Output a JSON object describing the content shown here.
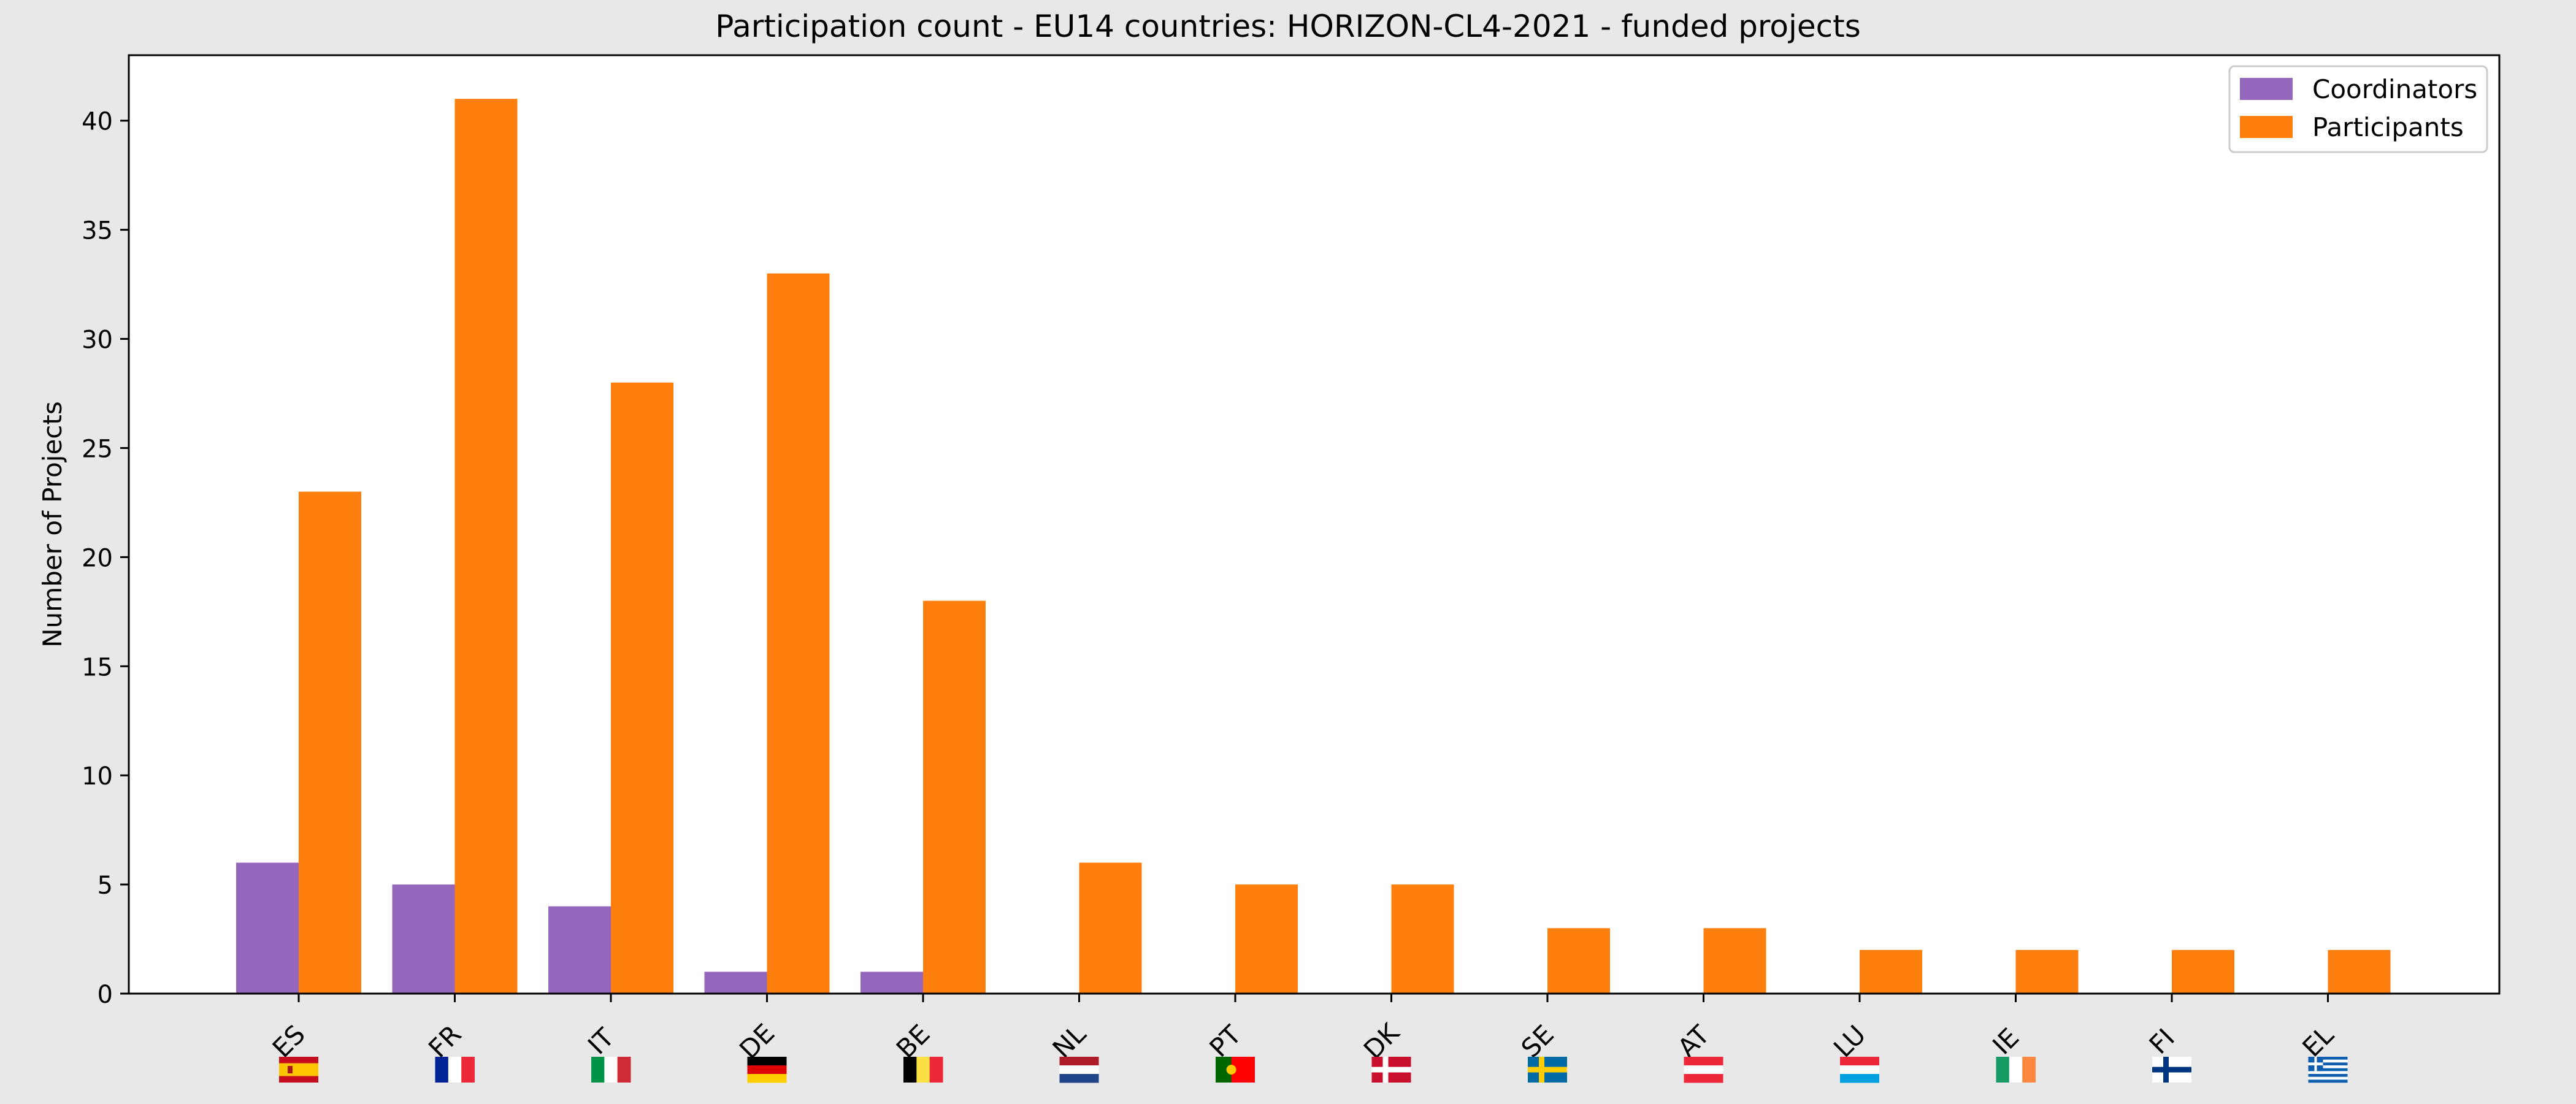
{
  "chart_data": {
    "type": "bar",
    "title": "Participation count - EU14 countries: HORIZON-CL4-2021 - funded projects",
    "xlabel": "",
    "ylabel": "Number of Projects",
    "categories": [
      "ES",
      "FR",
      "IT",
      "DE",
      "BE",
      "NL",
      "PT",
      "DK",
      "SE",
      "AT",
      "LU",
      "IE",
      "FI",
      "EL"
    ],
    "series": [
      {
        "name": "Coordinators",
        "color": "#9467bd",
        "values": [
          6,
          5,
          4,
          1,
          1,
          0,
          0,
          0,
          0,
          0,
          0,
          0,
          0,
          0
        ]
      },
      {
        "name": "Participants",
        "color": "#ff7f0e",
        "values": [
          23,
          41,
          28,
          33,
          18,
          6,
          5,
          5,
          3,
          3,
          2,
          2,
          2,
          2
        ]
      }
    ],
    "ylim": [
      0,
      43
    ],
    "yticks": [
      0,
      5,
      10,
      15,
      20,
      25,
      30,
      35,
      40
    ],
    "grid": false,
    "legend_position": "top-right",
    "flags": [
      "ES",
      "FR",
      "IT",
      "DE",
      "BE",
      "NL",
      "PT",
      "DK",
      "SE",
      "AT",
      "LU",
      "IE",
      "FI",
      "EL"
    ]
  }
}
